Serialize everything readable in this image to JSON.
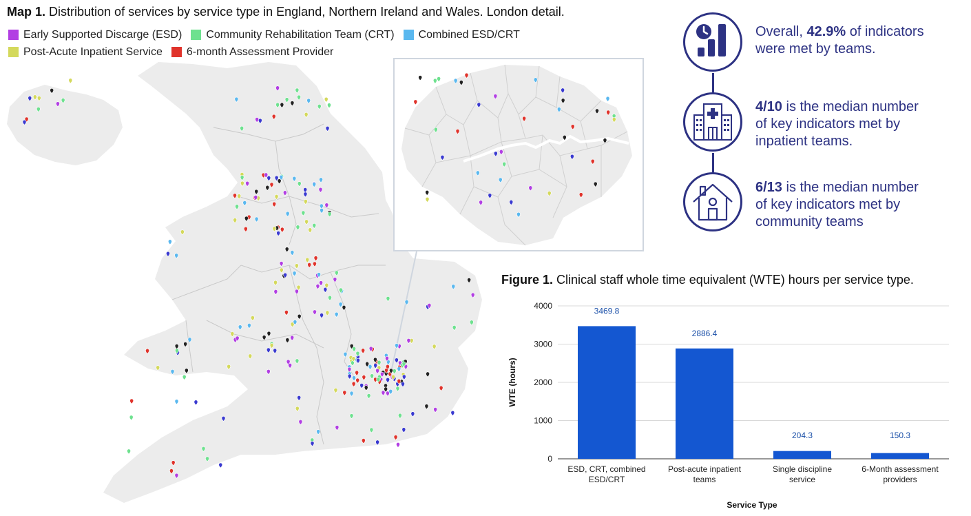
{
  "map": {
    "title_bold": "Map 1.",
    "title_rest": " Distribution of services by service type in England, Northern Ireland and Wales. London detail."
  },
  "legend": [
    {
      "label": "Early Supported Discarge (ESD)",
      "color": "#b23fe3"
    },
    {
      "label": "Community Rehabilitation Team (CRT)",
      "color": "#6ee18f"
    },
    {
      "label": "Combined ESD/CRT",
      "color": "#5ab8ef"
    },
    {
      "label": "Post-Acute Inpatient Service",
      "color": "#d4d95c"
    },
    {
      "label": "6-month Assessment Provider",
      "color": "#e0332b"
    }
  ],
  "info": {
    "overall_pre": "Overall, ",
    "overall_value": "42.9%",
    "overall_post": " of indicators",
    "overall_line2": "were met by teams.",
    "inpatient_value": "4/10",
    "inpatient_post": " is the median number",
    "inpatient_line2": "of key indicators met by",
    "inpatient_line3": "inpatient teams.",
    "community_value": "6/13",
    "community_post": " is the median number",
    "community_line2": "of key indicators met by",
    "community_line3": "community teams",
    "icons": [
      "clock-chart-icon",
      "hospital-icon",
      "house-icon"
    ],
    "color": "#2d3283"
  },
  "figure": {
    "title_bold": "Figure 1.",
    "title_rest": " Clinical staff whole time equivalent (WTE) hours per service type."
  },
  "chart_data": {
    "type": "bar",
    "categories": [
      [
        "ESD, CRT, combined",
        "ESD/CRT"
      ],
      [
        "Post-acute inpatient",
        "teams"
      ],
      [
        "Single discipline",
        "service"
      ],
      [
        "6-Month assessment",
        "providers"
      ]
    ],
    "values": [
      3469.8,
      2886.4,
      204.3,
      150.3
    ],
    "value_labels": [
      "3469.8",
      "2886.4",
      "204.3",
      "150.3"
    ],
    "ylabel": "WTE (hours)",
    "xlabel": "Service Type",
    "ylim": [
      0,
      4000
    ],
    "yticks": [
      "0",
      "1000",
      "2000",
      "3000",
      "4000"
    ],
    "grid": true,
    "bar_color": "#1457d1",
    "label_color": "#1a4fa8"
  }
}
